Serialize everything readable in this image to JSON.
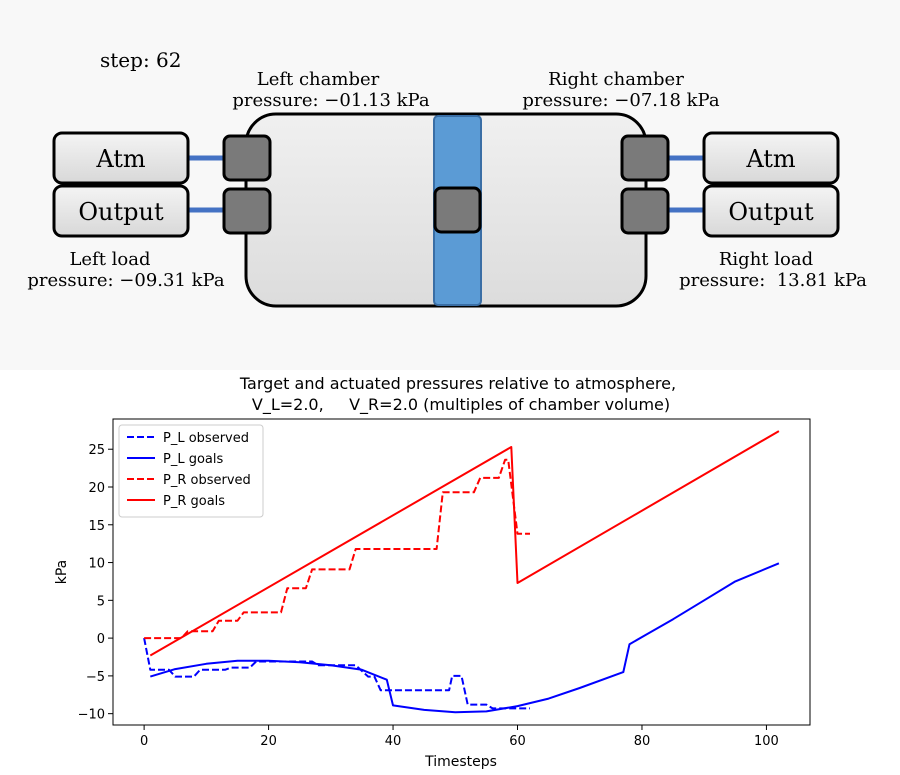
{
  "sim": {
    "step_label": "step: 62",
    "left_chamber": {
      "title": "Left chamber",
      "pressure": "pressure: −01.13 kPa"
    },
    "right_chamber": {
      "title": "Right chamber",
      "pressure": "pressure: −07.18 kPa"
    },
    "left_load": {
      "title": "Left load",
      "pressure": "pressure: −09.31 kPa"
    },
    "right_load": {
      "title": "Right load",
      "pressure": "pressure:  13.81 kPa"
    },
    "buttons": {
      "atm": "Atm",
      "output": "Output"
    },
    "colors": {
      "piston": "#5b9bd5",
      "pipe": "#4472c4",
      "valve": "#7a7a7a"
    }
  },
  "chart_data": {
    "type": "line",
    "title_line1": "Target and actuated pressures relative to atmosphere,",
    "title_line2": "V_L=2.0,     V_R=2.0 (multiples of chamber volume)",
    "xlabel": "Timesteps",
    "ylabel": "kPa",
    "xlim": [
      -5,
      107
    ],
    "ylim": [
      -11.5,
      29
    ],
    "xticks": [
      0,
      20,
      40,
      60,
      80,
      100
    ],
    "yticks": [
      -10,
      -5,
      0,
      5,
      10,
      15,
      20,
      25
    ],
    "legend_position": "top-left",
    "series": [
      {
        "name": "P_L observed",
        "color": "#0000ff",
        "style": "dashed",
        "points": [
          [
            0,
            0
          ],
          [
            1,
            -4.2
          ],
          [
            4,
            -4.2
          ],
          [
            5,
            -5.1
          ],
          [
            8,
            -5.1
          ],
          [
            9,
            -4.2
          ],
          [
            13,
            -4.2
          ],
          [
            14,
            -3.9
          ],
          [
            17,
            -3.9
          ],
          [
            18,
            -3.1
          ],
          [
            27,
            -3.1
          ],
          [
            28,
            -3.6
          ],
          [
            34,
            -3.6
          ],
          [
            36,
            -5.1
          ],
          [
            37,
            -5.1
          ],
          [
            38,
            -6.9
          ],
          [
            49,
            -6.9
          ],
          [
            49.5,
            -5.0
          ],
          [
            51,
            -5.0
          ],
          [
            52,
            -8.8
          ],
          [
            55,
            -8.8
          ],
          [
            56,
            -9.3
          ],
          [
            62,
            -9.3
          ]
        ]
      },
      {
        "name": "P_L goals",
        "color": "#0000ff",
        "style": "solid",
        "points": [
          [
            1,
            -5.1
          ],
          [
            5,
            -4.1
          ],
          [
            10,
            -3.4
          ],
          [
            15,
            -3.0
          ],
          [
            20,
            -3.0
          ],
          [
            25,
            -3.2
          ],
          [
            30,
            -3.6
          ],
          [
            35,
            -4.2
          ],
          [
            39,
            -5.5
          ],
          [
            40,
            -8.9
          ],
          [
            45,
            -9.5
          ],
          [
            50,
            -9.8
          ],
          [
            55,
            -9.7
          ],
          [
            60,
            -9.0
          ],
          [
            65,
            -8.0
          ],
          [
            70,
            -6.6
          ],
          [
            77,
            -4.5
          ],
          [
            78,
            -0.8
          ],
          [
            85,
            2.5
          ],
          [
            90,
            5.0
          ],
          [
            95,
            7.5
          ],
          [
            102,
            9.9
          ]
        ]
      },
      {
        "name": "P_R observed",
        "color": "#ff0000",
        "style": "dashed",
        "points": [
          [
            0,
            0
          ],
          [
            6,
            0
          ],
          [
            7,
            0.9
          ],
          [
            11,
            0.9
          ],
          [
            12,
            2.3
          ],
          [
            15,
            2.3
          ],
          [
            16,
            3.4
          ],
          [
            22,
            3.4
          ],
          [
            23,
            6.6
          ],
          [
            26,
            6.6
          ],
          [
            27,
            9.1
          ],
          [
            33,
            9.1
          ],
          [
            34,
            11.8
          ],
          [
            47,
            11.8
          ],
          [
            48,
            19.3
          ],
          [
            53,
            19.3
          ],
          [
            54,
            21.2
          ],
          [
            57,
            21.2
          ],
          [
            58,
            23.6
          ],
          [
            58.5,
            23.6
          ],
          [
            60,
            13.8
          ],
          [
            62,
            13.8
          ]
        ]
      },
      {
        "name": "P_R goals",
        "color": "#ff0000",
        "style": "solid",
        "points": [
          [
            1,
            -2.3
          ],
          [
            59,
            25.3
          ],
          [
            60,
            7.3
          ],
          [
            102,
            27.4
          ]
        ]
      }
    ]
  }
}
